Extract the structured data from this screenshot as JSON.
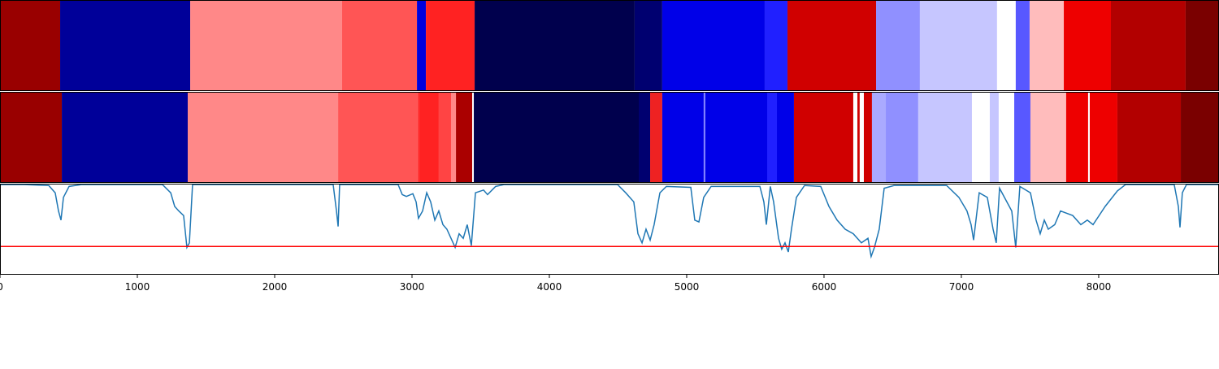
{
  "chart_data": [
    {
      "type": "segments",
      "xlim": [
        0,
        8876
      ],
      "segments": [
        {
          "start": 0,
          "end": 438,
          "color": "#990000"
        },
        {
          "start": 438,
          "end": 1385,
          "color": "#000099"
        },
        {
          "start": 1385,
          "end": 2491,
          "color": "#ff8888"
        },
        {
          "start": 2491,
          "end": 3036,
          "color": "#ff5555"
        },
        {
          "start": 3036,
          "end": 3101,
          "color": "#0000dd"
        },
        {
          "start": 3101,
          "end": 3456,
          "color": "#ff2222"
        },
        {
          "start": 3456,
          "end": 4621,
          "color": "#00004d"
        },
        {
          "start": 4621,
          "end": 4822,
          "color": "#000070"
        },
        {
          "start": 4822,
          "end": 5568,
          "color": "#0000e8"
        },
        {
          "start": 5568,
          "end": 5734,
          "color": "#2020ff"
        },
        {
          "start": 5734,
          "end": 6379,
          "color": "#d00000"
        },
        {
          "start": 6379,
          "end": 6698,
          "color": "#9090ff"
        },
        {
          "start": 6698,
          "end": 7260,
          "color": "#c6c6ff"
        },
        {
          "start": 7260,
          "end": 7396,
          "color": "#ffffff"
        },
        {
          "start": 7396,
          "end": 7497,
          "color": "#5858ff"
        },
        {
          "start": 7497,
          "end": 7746,
          "color": "#ffbcbc"
        },
        {
          "start": 7746,
          "end": 8089,
          "color": "#ee0000"
        },
        {
          "start": 8089,
          "end": 8633,
          "color": "#b20000"
        },
        {
          "start": 8633,
          "end": 8876,
          "color": "#7a0000"
        }
      ]
    },
    {
      "type": "segments",
      "xlim": [
        0,
        8876
      ],
      "segments": [
        {
          "start": 0,
          "end": 450,
          "color": "#990000"
        },
        {
          "start": 450,
          "end": 1367,
          "color": "#000099"
        },
        {
          "start": 1367,
          "end": 2462,
          "color": "#ff8888"
        },
        {
          "start": 2462,
          "end": 3041,
          "color": "#ff5555"
        },
        {
          "start": 3041,
          "end": 3053,
          "color": "#ff3333"
        },
        {
          "start": 3053,
          "end": 3195,
          "color": "#ff2222"
        },
        {
          "start": 3195,
          "end": 3284,
          "color": "#ff4444"
        },
        {
          "start": 3284,
          "end": 3320,
          "color": "#ff8888"
        },
        {
          "start": 3320,
          "end": 3438,
          "color": "#aa0000"
        },
        {
          "start": 3438,
          "end": 3450,
          "color": "#ffffff"
        },
        {
          "start": 3450,
          "end": 4651,
          "color": "#00004d"
        },
        {
          "start": 4651,
          "end": 4734,
          "color": "#000070"
        },
        {
          "start": 4734,
          "end": 4822,
          "color": "#ee2222"
        },
        {
          "start": 4822,
          "end": 5124,
          "color": "#0000e8"
        },
        {
          "start": 5124,
          "end": 5136,
          "color": "#8080ff"
        },
        {
          "start": 5136,
          "end": 5586,
          "color": "#0000e8"
        },
        {
          "start": 5586,
          "end": 5657,
          "color": "#2020ff"
        },
        {
          "start": 5657,
          "end": 5781,
          "color": "#0000e8"
        },
        {
          "start": 5781,
          "end": 6213,
          "color": "#d00000"
        },
        {
          "start": 6213,
          "end": 6243,
          "color": "#ffffff"
        },
        {
          "start": 6243,
          "end": 6260,
          "color": "#d00000"
        },
        {
          "start": 6260,
          "end": 6290,
          "color": "#ffffff"
        },
        {
          "start": 6290,
          "end": 6349,
          "color": "#d00000"
        },
        {
          "start": 6349,
          "end": 6450,
          "color": "#aaaaff"
        },
        {
          "start": 6450,
          "end": 6686,
          "color": "#9090ff"
        },
        {
          "start": 6686,
          "end": 7077,
          "color": "#c6c6ff"
        },
        {
          "start": 7077,
          "end": 7207,
          "color": "#ffffff"
        },
        {
          "start": 7207,
          "end": 7272,
          "color": "#c6c6ff"
        },
        {
          "start": 7272,
          "end": 7385,
          "color": "#ffffff"
        },
        {
          "start": 7385,
          "end": 7503,
          "color": "#5858ff"
        },
        {
          "start": 7503,
          "end": 7763,
          "color": "#ffbcbc"
        },
        {
          "start": 7763,
          "end": 7923,
          "color": "#ee0000"
        },
        {
          "start": 7923,
          "end": 7935,
          "color": "#ffffff"
        },
        {
          "start": 7935,
          "end": 8136,
          "color": "#ee0000"
        },
        {
          "start": 8136,
          "end": 8598,
          "color": "#b20000"
        },
        {
          "start": 8598,
          "end": 8876,
          "color": "#7a0000"
        }
      ]
    },
    {
      "type": "line",
      "color": "#1f77b4",
      "xlim": [
        0,
        8876
      ],
      "ylim": [
        0,
        1
      ],
      "xticks": [
        0,
        1000,
        2000,
        3000,
        4000,
        5000,
        6000,
        7000,
        8000
      ],
      "threshold": {
        "value": 0.31,
        "color": "#ff0000"
      },
      "x": [
        0,
        178,
        355,
        402,
        426,
        444,
        462,
        503,
        592,
        1183,
        1243,
        1272,
        1302,
        1337,
        1361,
        1379,
        1402,
        2426,
        2450,
        2462,
        2473,
        2899,
        2929,
        2959,
        3006,
        3030,
        3047,
        3077,
        3107,
        3136,
        3166,
        3195,
        3225,
        3254,
        3284,
        3314,
        3343,
        3373,
        3402,
        3432,
        3462,
        3521,
        3550,
        3609,
        3669,
        4497,
        4556,
        4615,
        4645,
        4675,
        4704,
        4734,
        4763,
        4805,
        4852,
        5030,
        5059,
        5089,
        5124,
        5178,
        5533,
        5562,
        5580,
        5609,
        5633,
        5669,
        5692,
        5716,
        5740,
        5763,
        5799,
        5858,
        5976,
        6036,
        6095,
        6154,
        6213,
        6272,
        6320,
        6343,
        6367,
        6402,
        6438,
        6509,
        6893,
        6982,
        7041,
        7071,
        7089,
        7130,
        7189,
        7231,
        7254,
        7278,
        7367,
        7396,
        7426,
        7503,
        7544,
        7574,
        7604,
        7633,
        7680,
        7722,
        7811,
        7870,
        7917,
        7959,
        8047,
        8136,
        8195,
        8550,
        8580,
        8592,
        8609,
        8639,
        8876
      ],
      "values": [
        0.99,
        0.99,
        0.98,
        0.9,
        0.7,
        0.6,
        0.85,
        0.97,
        0.99,
        0.99,
        0.9,
        0.75,
        0.7,
        0.65,
        0.3,
        0.35,
        0.99,
        0.99,
        0.7,
        0.53,
        0.99,
        0.99,
        0.88,
        0.86,
        0.89,
        0.8,
        0.62,
        0.7,
        0.9,
        0.8,
        0.6,
        0.7,
        0.55,
        0.5,
        0.4,
        0.3,
        0.45,
        0.4,
        0.55,
        0.32,
        0.9,
        0.93,
        0.88,
        0.97,
        0.99,
        0.99,
        0.9,
        0.8,
        0.45,
        0.35,
        0.5,
        0.38,
        0.55,
        0.9,
        0.97,
        0.96,
        0.6,
        0.58,
        0.85,
        0.97,
        0.97,
        0.8,
        0.55,
        0.97,
        0.8,
        0.4,
        0.28,
        0.35,
        0.25,
        0.5,
        0.85,
        0.98,
        0.97,
        0.75,
        0.6,
        0.5,
        0.45,
        0.35,
        0.4,
        0.2,
        0.3,
        0.5,
        0.95,
        0.98,
        0.98,
        0.85,
        0.7,
        0.55,
        0.38,
        0.9,
        0.85,
        0.5,
        0.35,
        0.95,
        0.7,
        0.3,
        0.97,
        0.9,
        0.6,
        0.45,
        0.6,
        0.5,
        0.55,
        0.7,
        0.65,
        0.55,
        0.6,
        0.55,
        0.75,
        0.92,
        0.99,
        0.99,
        0.75,
        0.52,
        0.9,
        0.99,
        0.99
      ]
    }
  ]
}
